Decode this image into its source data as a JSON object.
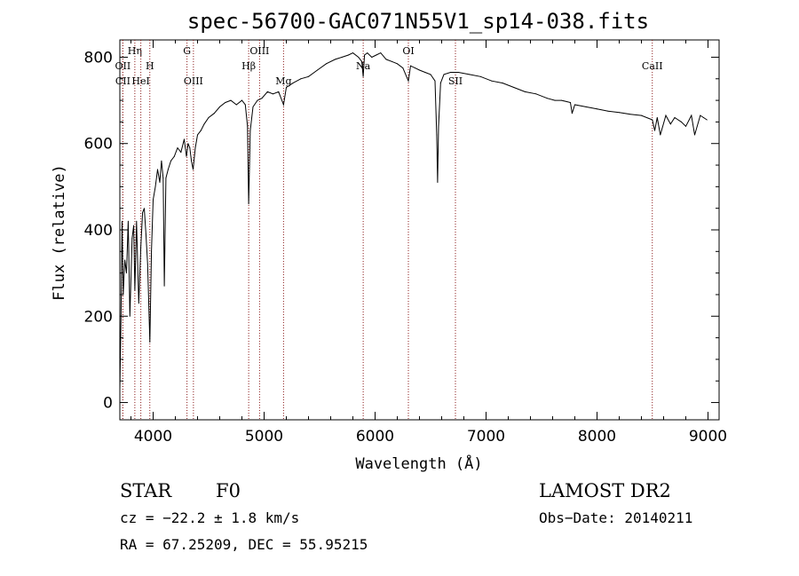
{
  "chart_data": {
    "type": "line",
    "title": "spec-56700-GAC071N55V1_sp14-038.fits",
    "xlabel": "Wavelength (Å)",
    "ylabel": "Flux (relative)",
    "xlim": [
      3700,
      9100
    ],
    "ylim": [
      -40,
      840
    ],
    "x_ticks": [
      4000,
      5000,
      6000,
      7000,
      8000,
      9000
    ],
    "y_ticks": [
      0,
      200,
      400,
      600,
      800
    ],
    "grid": false,
    "line_color": "#000000",
    "marker_color": "#8b1a1a",
    "spectral_lines": [
      {
        "label": "OII",
        "wavelength": 3727,
        "row": 2
      },
      {
        "label": "CII",
        "wavelength": 3727,
        "row": 3
      },
      {
        "label": "Hη",
        "wavelength": 3835,
        "row": 1
      },
      {
        "label": "HeI",
        "wavelength": 3889,
        "row": 3
      },
      {
        "label": "H",
        "wavelength": 3970,
        "row": 2
      },
      {
        "label": "G",
        "wavelength": 4305,
        "row": 1
      },
      {
        "label": "OIII",
        "wavelength": 4363,
        "row": 3
      },
      {
        "label": "Hβ",
        "wavelength": 4861,
        "row": 2
      },
      {
        "label": "OIII",
        "wavelength": 4959,
        "row": 1
      },
      {
        "label": "Mg",
        "wavelength": 5175,
        "row": 3
      },
      {
        "label": "Na",
        "wavelength": 5893,
        "row": 2
      },
      {
        "label": "OI",
        "wavelength": 6300,
        "row": 1
      },
      {
        "label": "SII",
        "wavelength": 6724,
        "row": 3
      },
      {
        "label": "CaII",
        "wavelength": 8498,
        "row": 2
      }
    ],
    "series": [
      {
        "x": [
          3700,
          3710,
          3720,
          3730,
          3745,
          3760,
          3775,
          3790,
          3810,
          3825,
          3835,
          3850,
          3870,
          3889,
          3905,
          3920,
          3935,
          3950,
          3970,
          3985,
          4000,
          4020,
          4040,
          4060,
          4075,
          4090,
          4101,
          4115,
          4135,
          4160,
          4190,
          4220,
          4250,
          4280,
          4300,
          4315,
          4330,
          4345,
          4360,
          4380,
          4400,
          4430,
          4460,
          4500,
          4550,
          4600,
          4650,
          4700,
          4750,
          4800,
          4830,
          4850,
          4861,
          4875,
          4900,
          4940,
          4980,
          5030,
          5080,
          5130,
          5175,
          5200,
          5260,
          5330,
          5400,
          5480,
          5560,
          5640,
          5700,
          5760,
          5800,
          5850,
          5880,
          5893,
          5905,
          5930,
          5970,
          6010,
          6050,
          6100,
          6150,
          6200,
          6250,
          6300,
          6320,
          6360,
          6400,
          6450,
          6500,
          6540,
          6555,
          6563,
          6572,
          6590,
          6620,
          6680,
          6750,
          6850,
          6950,
          7050,
          7150,
          7250,
          7350,
          7450,
          7550,
          7620,
          7680,
          7760,
          7775,
          7800,
          7900,
          8000,
          8100,
          8200,
          8300,
          8400,
          8498,
          8520,
          8542,
          8570,
          8620,
          8662,
          8700,
          8760,
          8800,
          8850,
          8880,
          8930,
          8960,
          8990
        ],
        "y": [
          30,
          200,
          420,
          250,
          330,
          300,
          420,
          200,
          380,
          410,
          260,
          420,
          230,
          360,
          440,
          450,
          390,
          320,
          140,
          350,
          470,
          500,
          540,
          510,
          560,
          520,
          270,
          520,
          540,
          560,
          570,
          590,
          580,
          610,
          570,
          600,
          590,
          560,
          540,
          590,
          620,
          630,
          645,
          660,
          670,
          685,
          695,
          700,
          690,
          700,
          690,
          640,
          460,
          630,
          685,
          700,
          705,
          720,
          715,
          720,
          690,
          730,
          740,
          750,
          755,
          770,
          785,
          795,
          800,
          805,
          810,
          800,
          790,
          755,
          805,
          810,
          800,
          805,
          810,
          795,
          790,
          785,
          775,
          745,
          780,
          775,
          770,
          765,
          760,
          745,
          620,
          510,
          640,
          740,
          760,
          765,
          765,
          760,
          755,
          745,
          740,
          730,
          720,
          715,
          705,
          700,
          700,
          695,
          670,
          690,
          685,
          680,
          675,
          672,
          668,
          665,
          655,
          630,
          660,
          620,
          665,
          645,
          660,
          650,
          640,
          665,
          620,
          665,
          660,
          655
        ]
      }
    ],
    "annotations": {
      "object": "STAR",
      "subclass": "F0",
      "survey": "LAMOST DR2",
      "cz": "cz = −22.2 ± 1.8 km/s",
      "obs_date": "Obs−Date: 20140211",
      "coords": "RA =  67.25209, DEC =  55.95215"
    }
  }
}
